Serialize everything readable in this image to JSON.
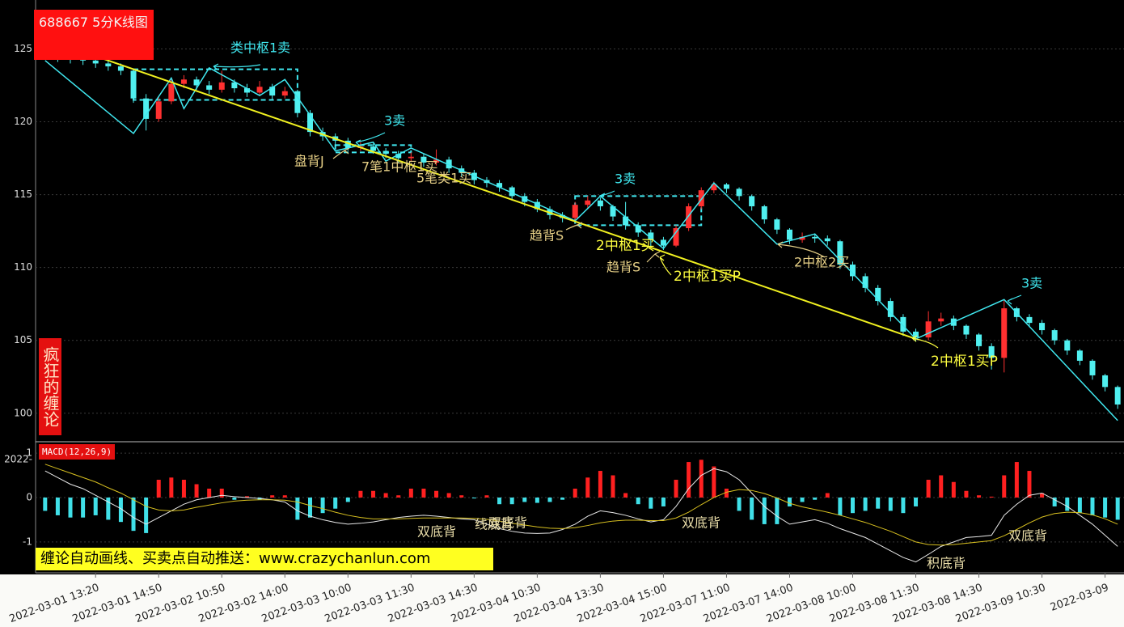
{
  "chart_data": [
    {
      "type": "candlestick",
      "title": "688667 5分K线图",
      "watermark": "疯狂的缠论",
      "xlim": [
        -0.5,
        85.5
      ],
      "ylim": [
        98.1,
        127.8
      ],
      "yticks": [
        100,
        105,
        110,
        115,
        120,
        125
      ],
      "grid": true,
      "up_color": "#ff3030",
      "down_color": "#50f0f0",
      "open": [
        124.8,
        124.6,
        124.4,
        124.3,
        124.2,
        124.0,
        123.8,
        123.5,
        121.6,
        120.2,
        121.4,
        122.6,
        122.9,
        122.5,
        122.2,
        122.7,
        122.3,
        122.0,
        122.4,
        121.8,
        122.1,
        120.6,
        119.3,
        119.0,
        118.7,
        118.2,
        118.3,
        118.0,
        117.8,
        117.5,
        117.6,
        117.2,
        117.4,
        116.8,
        116.5,
        116.0,
        115.8,
        115.5,
        114.9,
        114.5,
        114.0,
        113.6,
        113.4,
        114.3,
        114.6,
        114.2,
        113.5,
        112.9,
        112.4,
        111.9,
        111.5,
        112.7,
        114.2,
        115.3,
        115.7,
        115.4,
        114.9,
        114.2,
        113.3,
        112.6,
        111.9,
        112.1,
        112.0,
        111.8,
        110.2,
        109.4,
        108.6,
        107.7,
        106.6,
        105.6,
        105.2,
        106.3,
        106.5,
        106.0,
        105.4,
        104.6,
        103.8,
        107.2,
        106.6,
        106.2,
        105.7,
        105.0,
        104.3,
        103.6,
        102.6,
        101.8
      ],
      "high": [
        125.0,
        124.9,
        124.7,
        124.6,
        124.5,
        124.3,
        124.0,
        123.6,
        121.9,
        121.7,
        122.9,
        123.2,
        123.1,
        122.8,
        123.5,
        122.9,
        122.6,
        122.8,
        122.6,
        122.4,
        122.2,
        120.8,
        119.6,
        119.2,
        118.9,
        118.6,
        118.5,
        118.2,
        118.0,
        117.9,
        117.8,
        118.1,
        117.6,
        117.0,
        116.7,
        116.2,
        116.0,
        115.6,
        115.1,
        114.7,
        114.2,
        113.8,
        114.5,
        114.9,
        114.8,
        114.3,
        114.5,
        113.1,
        112.6,
        112.1,
        112.9,
        114.4,
        115.5,
        115.9,
        115.8,
        115.5,
        115.0,
        114.3,
        113.4,
        112.7,
        112.4,
        112.3,
        112.2,
        111.9,
        110.4,
        109.6,
        108.8,
        107.9,
        106.8,
        105.8,
        107.0,
        106.9,
        106.7,
        106.1,
        105.5,
        104.8,
        107.8,
        107.3,
        106.8,
        106.4,
        105.8,
        105.1,
        104.4,
        103.7,
        102.7,
        101.9
      ],
      "low": [
        124.3,
        124.1,
        124.0,
        123.9,
        123.7,
        123.5,
        123.2,
        121.3,
        119.4,
        120.0,
        121.2,
        122.3,
        122.2,
        121.9,
        122.0,
        122.0,
        121.7,
        121.8,
        121.5,
        121.6,
        120.3,
        119.0,
        118.7,
        118.3,
        118.0,
        118.0,
        117.8,
        117.5,
        117.2,
        117.3,
        116.9,
        117.0,
        116.5,
        116.2,
        115.7,
        115.5,
        115.2,
        114.6,
        114.2,
        113.8,
        113.3,
        113.1,
        113.2,
        114.0,
        113.9,
        113.2,
        112.6,
        112.1,
        111.4,
        111.2,
        111.4,
        112.5,
        114.0,
        115.1,
        115.1,
        114.6,
        113.9,
        113.0,
        112.3,
        111.6,
        111.7,
        111.7,
        111.5,
        109.9,
        109.1,
        108.3,
        107.4,
        106.3,
        105.3,
        104.9,
        105.0,
        106.0,
        105.7,
        105.1,
        104.3,
        103.0,
        102.8,
        106.3,
        105.9,
        105.4,
        104.7,
        104.0,
        103.3,
        102.3,
        101.5,
        100.3
      ],
      "close": [
        124.6,
        124.4,
        124.3,
        124.2,
        124.0,
        123.8,
        123.5,
        121.6,
        120.2,
        121.4,
        122.6,
        122.9,
        122.5,
        122.2,
        122.7,
        122.3,
        122.0,
        122.4,
        121.8,
        122.1,
        120.6,
        119.3,
        119.0,
        118.7,
        118.2,
        118.3,
        118.0,
        117.8,
        117.5,
        117.6,
        117.2,
        117.4,
        116.8,
        116.5,
        116.0,
        115.8,
        115.5,
        114.9,
        114.5,
        114.0,
        113.6,
        113.4,
        114.3,
        114.6,
        114.2,
        113.5,
        112.9,
        112.4,
        111.9,
        111.5,
        112.7,
        114.2,
        115.3,
        115.7,
        115.4,
        114.9,
        114.2,
        113.3,
        112.6,
        111.9,
        112.1,
        112.0,
        111.8,
        110.2,
        109.4,
        108.6,
        107.7,
        106.6,
        105.6,
        105.2,
        106.3,
        106.5,
        106.0,
        105.4,
        104.6,
        103.8,
        107.2,
        106.6,
        106.2,
        105.7,
        105.0,
        104.3,
        103.6,
        102.6,
        101.8,
        100.6
      ],
      "strokes": {
        "color": "#40e8f0",
        "x": [
          0,
          7,
          10,
          11,
          13,
          17,
          19,
          23,
          26,
          27,
          29,
          42,
          44,
          49,
          53,
          58,
          61,
          69,
          76,
          85
        ],
        "values": [
          124.2,
          119.2,
          123.0,
          120.9,
          123.7,
          121.8,
          122.9,
          118.0,
          118.6,
          117.3,
          118.2,
          113.2,
          114.9,
          111.3,
          115.8,
          111.6,
          112.3,
          105.1,
          107.8,
          99.5
        ]
      },
      "trend_line": {
        "color": "#f0f020",
        "x": [
          3,
          69
        ],
        "values": [
          124.8,
          105.1
        ]
      },
      "pivot_color": "#40e8f0",
      "pivots": [
        {
          "x": [
            7,
            20
          ],
          "range": [
            121.5,
            123.6
          ]
        },
        {
          "x": [
            23,
            29
          ],
          "range": [
            117.9,
            118.4
          ]
        },
        {
          "x": [
            42,
            52
          ],
          "range": [
            112.9,
            114.9
          ]
        }
      ],
      "annotations": [
        {
          "text": "类中枢1卖",
          "color": "#40e8f0"
        },
        {
          "text": "3卖",
          "color": "#40e8f0"
        },
        {
          "text": "3卖",
          "color": "#40e8f0"
        },
        {
          "text": "3卖",
          "color": "#40e8f0"
        },
        {
          "text": "盘背J",
          "color": "#e6cf86"
        },
        {
          "text": "7笔1中枢1买",
          "color": "#e6cf86"
        },
        {
          "text": "5笔类1买",
          "color": "#e6cf86"
        },
        {
          "text": "趋背S",
          "color": "#e6cf86"
        },
        {
          "text": "2中枢1买",
          "color": "#ffff40"
        },
        {
          "text": "趋背S",
          "color": "#e6cf86"
        },
        {
          "text": "2中枢1买P",
          "color": "#ffff40"
        },
        {
          "text": "2中枢2买",
          "color": "#e6cf86"
        },
        {
          "text": "2中枢1买P",
          "color": "#ffff40"
        }
      ]
    },
    {
      "type": "macd",
      "title": "MACD(12,26,9)",
      "corner_label": "2022-",
      "banner": "缠论自动画线、买卖点自动推送：www.crazychanlun.com",
      "xlim": [
        -0.5,
        85.5
      ],
      "ylim": [
        -1.64,
        1.22
      ],
      "yticks": [
        -1,
        0,
        1
      ],
      "grid": true,
      "xticks": [
        {
          "value": 4,
          "label": "2022-03-01 13:20"
        },
        {
          "value": 9,
          "label": "2022-03-01 14:50"
        },
        {
          "value": 14,
          "label": "2022-03-02 10:50"
        },
        {
          "value": 19,
          "label": "2022-03-02 14:00"
        },
        {
          "value": 24,
          "label": "2022-03-03 10:00"
        },
        {
          "value": 29,
          "label": "2022-03-03 11:30"
        },
        {
          "value": 34,
          "label": "2022-03-03 14:30"
        },
        {
          "value": 39,
          "label": "2022-03-04 10:30"
        },
        {
          "value": 44,
          "label": "2022-03-04 13:30"
        },
        {
          "value": 49,
          "label": "2022-03-04 15:00"
        },
        {
          "value": 54,
          "label": "2022-03-07 11:00"
        },
        {
          "value": 59,
          "label": "2022-03-07 14:00"
        },
        {
          "value": 64,
          "label": "2022-03-08 10:00"
        },
        {
          "value": 69,
          "label": "2022-03-08 11:30"
        },
        {
          "value": 74,
          "label": "2022-03-08 14:30"
        },
        {
          "value": 79,
          "label": "2022-03-09 10:30"
        },
        {
          "value": 84,
          "label": "2022-03-09"
        }
      ],
      "histogram": {
        "up_color": "#ff2020",
        "down_color": "#40e0e8",
        "values": [
          -0.3,
          -0.4,
          -0.45,
          -0.45,
          -0.4,
          -0.5,
          -0.55,
          -0.75,
          -0.8,
          0.4,
          0.45,
          0.4,
          0.3,
          0.2,
          0.2,
          -0.05,
          0.03,
          -0.05,
          0.05,
          0.05,
          -0.5,
          -0.45,
          -0.35,
          -0.25,
          -0.1,
          0.15,
          0.15,
          0.1,
          0.05,
          0.2,
          0.2,
          0.15,
          0.1,
          0.05,
          -0.02,
          0.05,
          -0.15,
          -0.15,
          -0.1,
          -0.12,
          -0.1,
          -0.05,
          0.2,
          0.45,
          0.6,
          0.5,
          0.1,
          -0.15,
          -0.25,
          -0.2,
          0.4,
          0.8,
          0.85,
          0.7,
          0.2,
          -0.3,
          -0.5,
          -0.6,
          -0.6,
          -0.2,
          -0.1,
          -0.05,
          0.1,
          -0.4,
          -0.35,
          -0.3,
          -0.25,
          -0.3,
          -0.35,
          -0.2,
          0.4,
          0.5,
          0.35,
          0.15,
          0.05,
          0.02,
          0.5,
          0.8,
          0.6,
          0.1,
          -0.2,
          -0.3,
          -0.35,
          -0.4,
          -0.45,
          -0.5
        ]
      },
      "lines": [
        {
          "color": "#e8e8e8",
          "values": [
            0.6,
            0.45,
            0.3,
            0.2,
            0.05,
            -0.1,
            -0.25,
            -0.45,
            -0.6,
            -0.45,
            -0.3,
            -0.15,
            -0.05,
            0.0,
            0.05,
            0.02,
            0.0,
            -0.02,
            -0.05,
            -0.1,
            -0.3,
            -0.42,
            -0.5,
            -0.56,
            -0.6,
            -0.58,
            -0.55,
            -0.5,
            -0.45,
            -0.42,
            -0.4,
            -0.42,
            -0.45,
            -0.48,
            -0.5,
            -0.6,
            -0.7,
            -0.76,
            -0.8,
            -0.81,
            -0.8,
            -0.72,
            -0.6,
            -0.42,
            -0.3,
            -0.34,
            -0.4,
            -0.48,
            -0.55,
            -0.5,
            -0.2,
            0.2,
            0.5,
            0.65,
            0.58,
            0.4,
            0.1,
            -0.2,
            -0.42,
            -0.6,
            -0.55,
            -0.5,
            -0.58,
            -0.7,
            -0.8,
            -0.9,
            -1.05,
            -1.2,
            -1.35,
            -1.45,
            -1.28,
            -1.1,
            -1.0,
            -0.9,
            -0.88,
            -0.85,
            -0.4,
            -0.15,
            0.05,
            0.1,
            -0.05,
            -0.2,
            -0.4,
            -0.6,
            -0.85,
            -1.1
          ]
        },
        {
          "color": "#d8c020",
          "values": [
            0.75,
            0.65,
            0.55,
            0.45,
            0.35,
            0.22,
            0.1,
            -0.05,
            -0.2,
            -0.28,
            -0.3,
            -0.28,
            -0.22,
            -0.17,
            -0.12,
            -0.08,
            -0.06,
            -0.05,
            -0.05,
            -0.06,
            -0.1,
            -0.18,
            -0.25,
            -0.33,
            -0.4,
            -0.45,
            -0.48,
            -0.48,
            -0.48,
            -0.47,
            -0.46,
            -0.46,
            -0.46,
            -0.46,
            -0.47,
            -0.49,
            -0.53,
            -0.58,
            -0.62,
            -0.66,
            -0.69,
            -0.7,
            -0.68,
            -0.63,
            -0.57,
            -0.53,
            -0.51,
            -0.51,
            -0.52,
            -0.52,
            -0.46,
            -0.33,
            -0.16,
            0.0,
            0.12,
            0.18,
            0.16,
            0.09,
            -0.01,
            -0.13,
            -0.21,
            -0.27,
            -0.33,
            -0.4,
            -0.48,
            -0.56,
            -0.66,
            -0.76,
            -0.88,
            -1.0,
            -1.06,
            -1.07,
            -1.06,
            -1.03,
            -1.0,
            -0.97,
            -0.86,
            -0.72,
            -0.57,
            -0.44,
            -0.36,
            -0.33,
            -0.34,
            -0.39,
            -0.48,
            -0.6
          ]
        }
      ],
      "annotations": [
        {
          "text": "双底背",
          "color": "#e8dca8"
        },
        {
          "text": "线底背",
          "color": "#e8dca8"
        },
        {
          "text": "双底背",
          "color": "#e8dca8"
        },
        {
          "text": "双底背",
          "color": "#e8dca8"
        },
        {
          "text": "积底背",
          "color": "#e8dca8"
        },
        {
          "text": "双底背",
          "color": "#e8dca8"
        }
      ]
    }
  ]
}
